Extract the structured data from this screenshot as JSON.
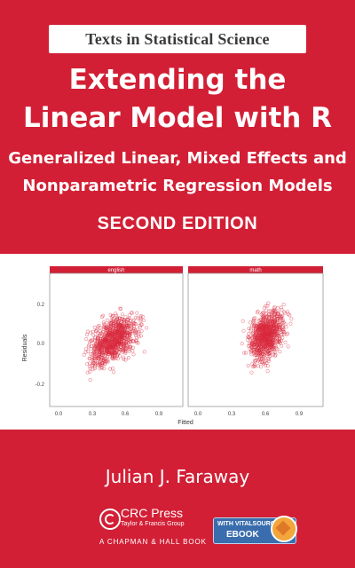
{
  "series": {
    "label": "Texts in Statistical Science"
  },
  "title": {
    "line1": "Extending the",
    "line2": "Linear Model with R"
  },
  "subtitle": {
    "line1": "Generalized Linear, Mixed Effects and",
    "line2": "Nonparametric Regression Models"
  },
  "edition": "SECOND EDITION",
  "plot": {
    "panels": [
      {
        "label": "english"
      },
      {
        "label": "math"
      }
    ],
    "x_axis_label": "Fitted",
    "y_axis_label": "Residuals",
    "x_ticks": [
      "0.0",
      "0.3",
      "0.6",
      "0.9"
    ],
    "y_ticks": [
      "0.2",
      "0.0",
      "-0.2"
    ]
  },
  "author": "Julian J. Faraway",
  "publisher": {
    "name": "CRC Press",
    "tagline": "Taylor & Francis Group",
    "imprint": "A CHAPMAN & HALL BOOK",
    "logo_text": "CRC"
  },
  "ebook": {
    "line1": "WITH VITALSOURCE®",
    "line2": "EBOOK"
  },
  "colors": {
    "cover_red": "#d21f35",
    "panel_strip": "#d21f35",
    "point_color": "#d9283c",
    "ebook_blue": "#3a6dad"
  }
}
